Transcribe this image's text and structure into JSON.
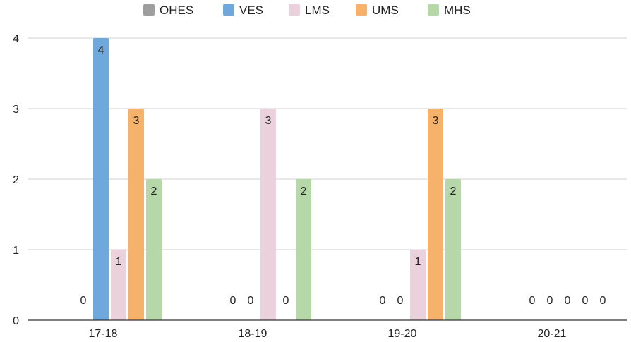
{
  "chart_data": {
    "type": "bar",
    "categories": [
      "17-18",
      "18-19",
      "19-20",
      "20-21"
    ],
    "series": [
      {
        "name": "OHES",
        "color": "#9e9e9e",
        "values": [
          0,
          0,
          0,
          0
        ]
      },
      {
        "name": "VES",
        "color": "#6fa8dc",
        "values": [
          4,
          0,
          0,
          0
        ]
      },
      {
        "name": "LMS",
        "color": "#ead1dc",
        "values": [
          1,
          3,
          1,
          0
        ]
      },
      {
        "name": "UMS",
        "color": "#f6b26b",
        "values": [
          3,
          0,
          3,
          0
        ]
      },
      {
        "name": "MHS",
        "color": "#b6d7a8",
        "values": [
          2,
          2,
          2,
          0
        ]
      }
    ],
    "yticks": [
      "0",
      "1",
      "2",
      "3",
      "4"
    ],
    "ylim": [
      0,
      4
    ],
    "grid": true,
    "legend_position": "top-center",
    "show_data_labels": true
  }
}
